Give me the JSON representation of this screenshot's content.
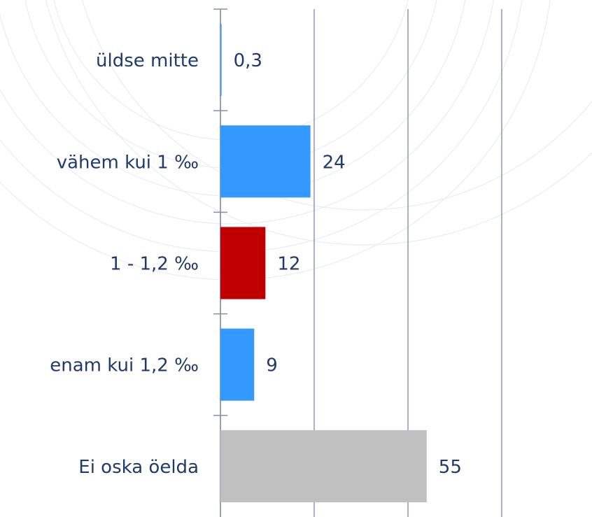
{
  "chart_data": {
    "type": "barh",
    "categories": [
      "üldse mitte",
      "vähem kui 1 ‰",
      "1 - 1,2 ‰",
      "enam kui 1,2 ‰",
      "Ei oska öelda"
    ],
    "values": [
      0.3,
      24,
      12,
      9,
      55
    ],
    "value_labels": [
      "0,3",
      "24",
      "12",
      "9",
      "55"
    ],
    "colors": [
      "#3399ff",
      "#3399ff",
      "#c00000",
      "#3399ff",
      "#c0c0c0"
    ],
    "xlim": [
      0,
      75
    ],
    "xticks": [
      0,
      25,
      50,
      75
    ],
    "grid": true
  }
}
